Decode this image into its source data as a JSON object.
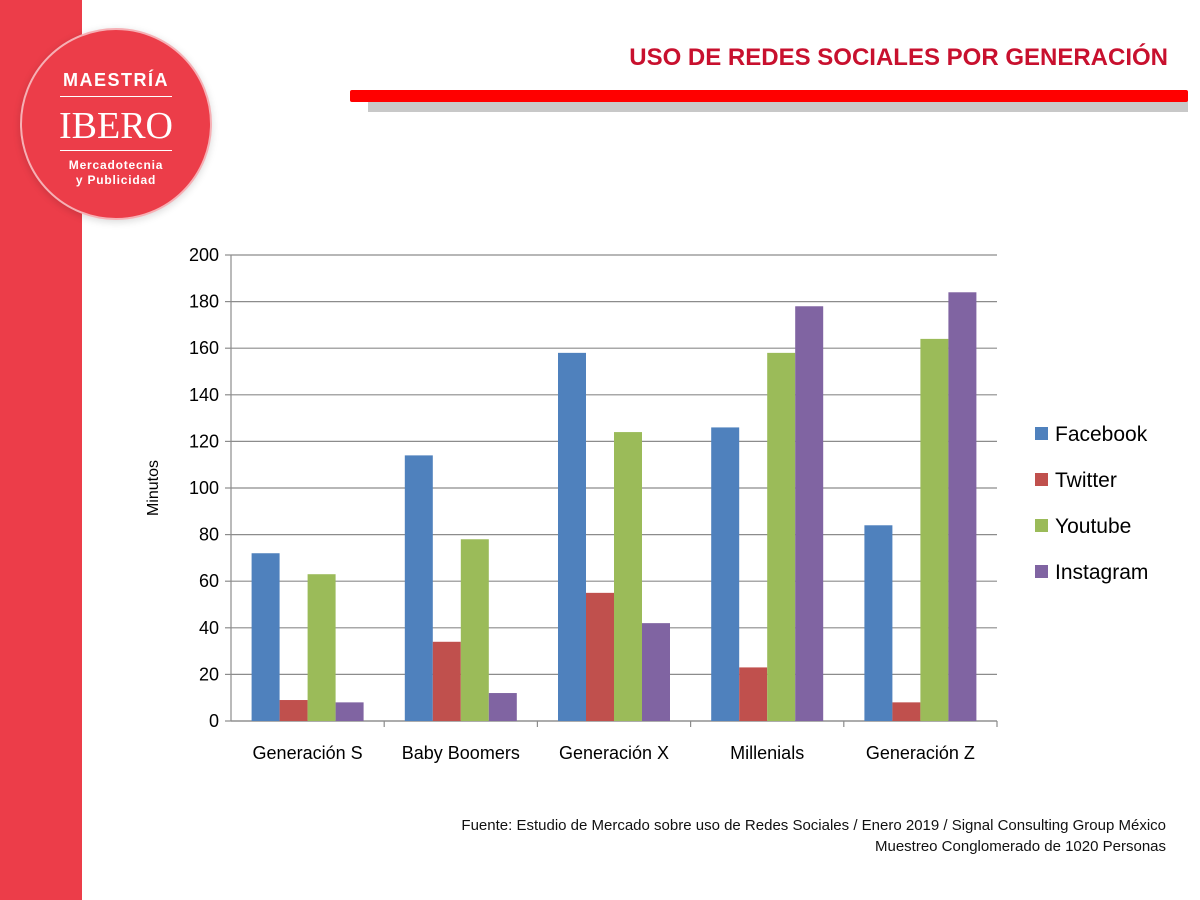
{
  "brand": {
    "top": "MAESTRÍA",
    "main": "IBERO",
    "sub_line1": "Mercadotecnia",
    "sub_line2": "y Publicidad",
    "accent_color": "#ec3d49"
  },
  "header": {
    "title": "USO DE REDES SOCIALES POR GENERACIÓN",
    "title_color": "#c8102e"
  },
  "footer": {
    "source_line1": "Fuente: Estudio de Mercado sobre uso de Redes Sociales / Enero 2019 / Signal Consulting Group México",
    "source_line2": "Muestreo Conglomerado de 1020 Personas"
  },
  "chart_data": {
    "type": "bar",
    "title": "",
    "xlabel": "",
    "ylabel": "Minutos",
    "ylim": [
      0,
      200
    ],
    "yticks": [
      0,
      20,
      40,
      60,
      80,
      100,
      120,
      140,
      160,
      180,
      200
    ],
    "grid": true,
    "legend_position": "right",
    "categories": [
      "Generación S",
      "Baby Boomers",
      "Generación X",
      "Millenials",
      "Generación Z"
    ],
    "series": [
      {
        "name": "Facebook",
        "color": "#4f81bd",
        "values": [
          72,
          114,
          158,
          126,
          84
        ]
      },
      {
        "name": "Twitter",
        "color": "#c0504d",
        "values": [
          9,
          34,
          55,
          23,
          8
        ]
      },
      {
        "name": "Youtube",
        "color": "#9bbb59",
        "values": [
          63,
          78,
          124,
          158,
          164
        ]
      },
      {
        "name": "Instagram",
        "color": "#8064a2",
        "values": [
          8,
          12,
          42,
          178,
          184
        ]
      }
    ]
  }
}
